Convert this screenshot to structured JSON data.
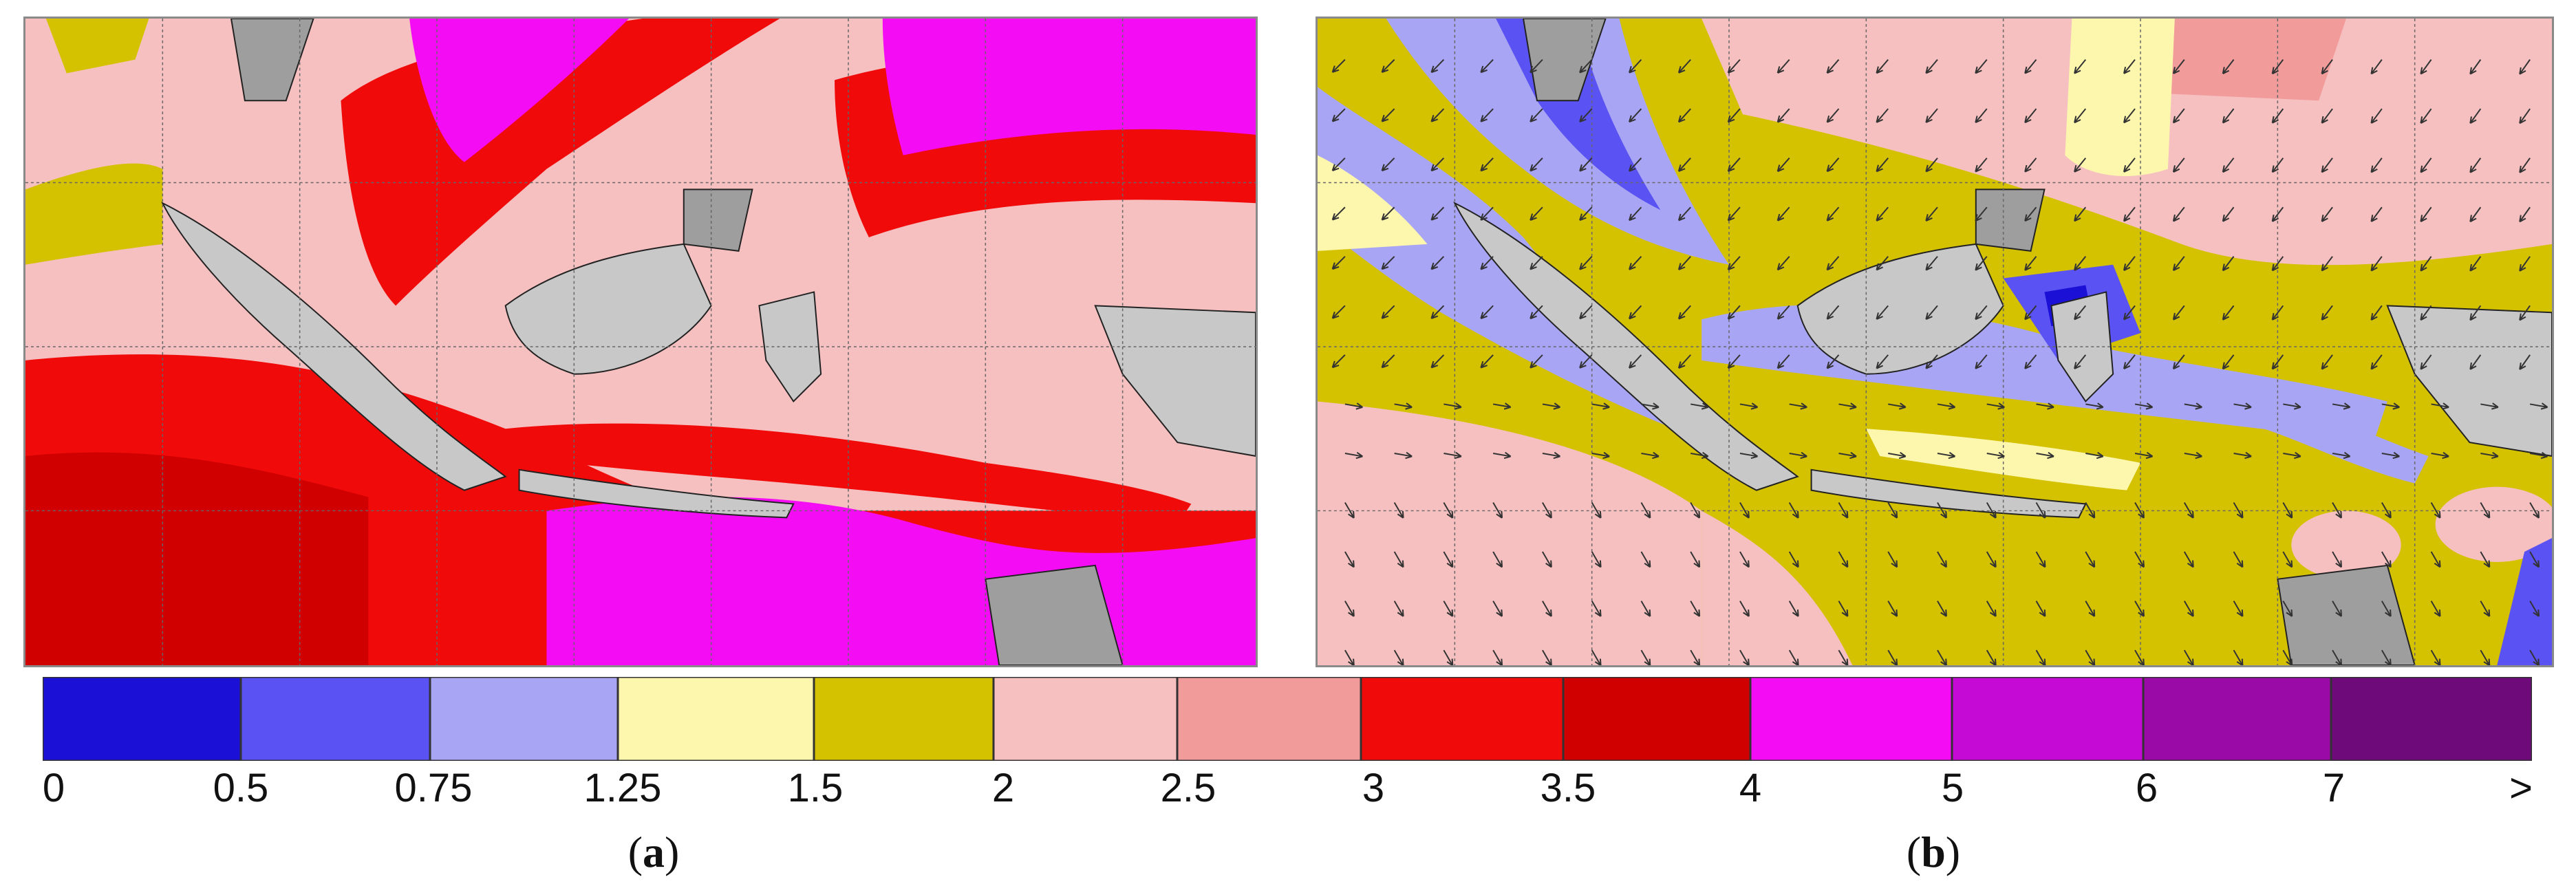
{
  "panels": [
    {
      "id": "a",
      "caption_open": "(",
      "caption_letter": "a",
      "caption_close": ")"
    },
    {
      "id": "b",
      "caption_open": "(",
      "caption_letter": "b",
      "caption_close": ")"
    }
  ],
  "legend": {
    "ticks": [
      "0",
      "0.5",
      "0.75",
      "1.25",
      "1.5",
      "2",
      "2.5",
      "3",
      "3.5",
      "4",
      "5",
      "6",
      "7",
      ">"
    ],
    "colors": [
      "#1a10d6",
      "#5a52f2",
      "#a9a5f5",
      "#fdf7ae",
      "#d4c100",
      "#f6c0c0",
      "#f29b9b",
      "#f00a0a",
      "#d10000",
      "#f40cf4",
      "#c60ad6",
      "#9a0aa6",
      "#6e0a7a"
    ]
  },
  "map_colors": {
    "land": "#c8c8c8",
    "land_dark": "#9e9e9e",
    "gridline": "#666666",
    "arrow": "#333333"
  }
}
